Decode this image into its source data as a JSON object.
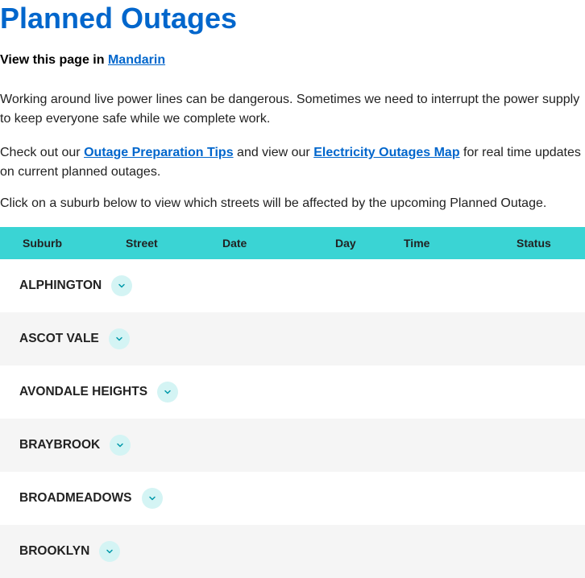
{
  "title": "Planned Outages",
  "language": {
    "prefix": "View this page in ",
    "link_text": "Mandarin"
  },
  "intro_paragraph": "Working around live power lines can be dangerous. Sometimes we need to interrupt the power supply to keep everyone safe while we complete work.",
  "links_paragraph": {
    "prefix": "Check out our ",
    "link1": "Outage Preparation Tips",
    "mid": " and view our ",
    "link2": "Electricity Outages Map",
    "suffix": " for real time updates on current planned outages."
  },
  "instruction": "Click on a suburb below to view which streets will be affected by the upcoming Planned Outage.",
  "columns": {
    "suburb": "Suburb",
    "street": "Street",
    "date": "Date",
    "day": "Day",
    "time": "Time",
    "status": "Status"
  },
  "suburbs": [
    {
      "name": "ALPHINGTON"
    },
    {
      "name": "ASCOT VALE"
    },
    {
      "name": "AVONDALE HEIGHTS"
    },
    {
      "name": "BRAYBROOK"
    },
    {
      "name": "BROADMEADOWS"
    },
    {
      "name": "BROOKLYN"
    }
  ],
  "colors": {
    "link_color": "#0066cc",
    "header_bg": "#3ad4d4",
    "chevron_bg": "#d4f4f4",
    "row_alt_bg": "#f5f5f5"
  }
}
